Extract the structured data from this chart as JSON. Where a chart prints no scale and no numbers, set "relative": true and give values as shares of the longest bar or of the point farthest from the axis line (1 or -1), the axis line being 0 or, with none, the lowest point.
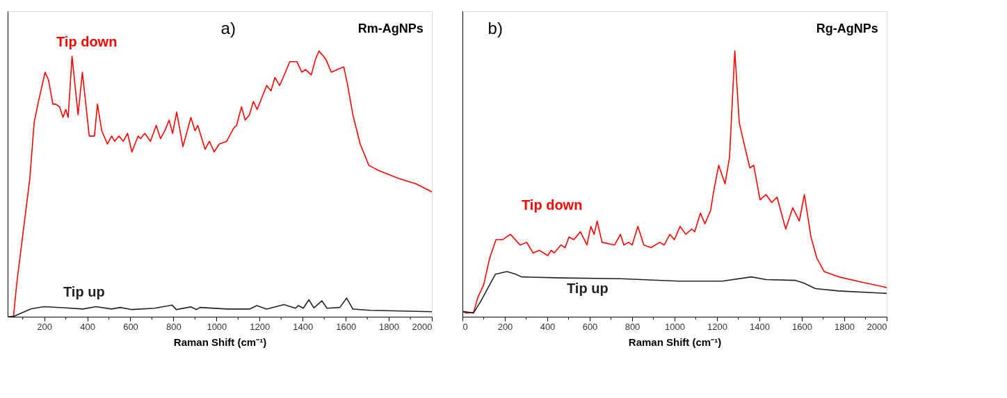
{
  "chart_data": [
    {
      "type": "line",
      "relative": true,
      "xlabel": "Raman Shift (cm⁻¹)",
      "annotations": [
        "a)",
        "Rm-AgNPs"
      ],
      "xlim": [
        30,
        2000
      ],
      "xticks": [
        {
          "value": 100,
          "label": null
        },
        200,
        {
          "value": 300,
          "label": null
        },
        400,
        {
          "value": 500,
          "label": null
        },
        600,
        {
          "value": 700,
          "label": null
        },
        800,
        {
          "value": 900,
          "label": null
        },
        1000,
        {
          "value": 1100,
          "label": null
        },
        1200,
        {
          "value": 1300,
          "label": null
        },
        1400,
        {
          "value": 1500,
          "label": null
        },
        1600,
        {
          "value": 1700,
          "label": null
        },
        1800,
        {
          "value": 1900,
          "label": null
        },
        2000
      ],
      "tick_labels": "x",
      "grid": false,
      "marker": "none",
      "line_style": "solid",
      "series": [
        {
          "name": "Tip down",
          "color": "#ff0000",
          "x": [
            57,
            73,
            133,
            153,
            173,
            204,
            220,
            240,
            253,
            271,
            287,
            300,
            311,
            329,
            357,
            377,
            409,
            433,
            447,
            467,
            493,
            513,
            527,
            547,
            567,
            587,
            607,
            636,
            647,
            667,
            693,
            720,
            740,
            760,
            780,
            796,
            815,
            844,
            881,
            900,
            913,
            947,
            967,
            989,
            1013,
            1047,
            1080,
            1093,
            1116,
            1133,
            1153,
            1171,
            1189,
            1213,
            1233,
            1253,
            1271,
            1293,
            1320,
            1340,
            1373,
            1396,
            1413,
            1440,
            1460,
            1476,
            1507,
            1533,
            1560,
            1591,
            1607,
            1633,
            1667,
            1707,
            1753,
            1847,
            1927,
            2000
          ],
          "values": [
            0.0,
            0.13,
            0.52,
            0.73,
            0.81,
            0.92,
            0.89,
            0.8,
            0.8,
            0.79,
            0.75,
            0.78,
            0.75,
            0.98,
            0.76,
            0.92,
            0.68,
            0.68,
            0.8,
            0.7,
            0.65,
            0.68,
            0.66,
            0.68,
            0.66,
            0.69,
            0.62,
            0.68,
            0.67,
            0.69,
            0.66,
            0.72,
            0.67,
            0.7,
            0.74,
            0.69,
            0.77,
            0.64,
            0.75,
            0.7,
            0.72,
            0.63,
            0.66,
            0.62,
            0.65,
            0.66,
            0.71,
            0.72,
            0.79,
            0.74,
            0.76,
            0.81,
            0.78,
            0.83,
            0.87,
            0.85,
            0.9,
            0.87,
            0.92,
            0.96,
            0.96,
            0.92,
            0.93,
            0.91,
            0.97,
            1.0,
            0.97,
            0.92,
            0.93,
            0.94,
            0.88,
            0.76,
            0.65,
            0.57,
            0.55,
            0.52,
            0.5,
            0.47
          ]
        },
        {
          "name": "Tip up",
          "color": "#222222",
          "x": [
            33,
            60,
            140,
            200,
            287,
            380,
            440,
            513,
            553,
            607,
            713,
            793,
            813,
            880,
            907,
            923,
            1047,
            1153,
            1187,
            1233,
            1313,
            1367,
            1380,
            1403,
            1429,
            1452,
            1489,
            1513,
            1573,
            1604,
            1633,
            1713,
            2000
          ],
          "values": [
            0.0,
            0.002,
            0.03,
            0.038,
            0.034,
            0.029,
            0.038,
            0.029,
            0.035,
            0.027,
            0.032,
            0.044,
            0.027,
            0.037,
            0.027,
            0.035,
            0.029,
            0.029,
            0.042,
            0.029,
            0.046,
            0.032,
            0.042,
            0.032,
            0.064,
            0.033,
            0.06,
            0.032,
            0.035,
            0.07,
            0.029,
            0.024,
            0.019
          ]
        }
      ]
    },
    {
      "type": "line",
      "relative": true,
      "xlabel": "Raman Shift (cm⁻¹)",
      "annotations": [
        "b)",
        "Rg-AgNPs"
      ],
      "xlim": [
        0,
        2000
      ],
      "xticks": [
        0,
        {
          "value": 100,
          "label": null
        },
        200,
        {
          "value": 300,
          "label": null
        },
        400,
        {
          "value": 500,
          "label": null
        },
        600,
        {
          "value": 700,
          "label": null
        },
        800,
        {
          "value": 900,
          "label": null
        },
        1000,
        {
          "value": 1100,
          "label": null
        },
        1200,
        {
          "value": 1300,
          "label": null
        },
        1400,
        {
          "value": 1500,
          "label": null
        },
        1600,
        {
          "value": 1700,
          "label": null
        },
        1800,
        {
          "value": 1900,
          "label": null
        },
        2000
      ],
      "tick_labels": "x",
      "grid": false,
      "marker": "none",
      "line_style": "solid",
      "series": [
        {
          "name": "Tip down",
          "color": "#ff0000",
          "x": [
            0,
            18,
            52,
            73,
            100,
            128,
            158,
            189,
            226,
            272,
            303,
            333,
            363,
            402,
            418,
            432,
            464,
            484,
            502,
            525,
            556,
            587,
            605,
            621,
            635,
            658,
            717,
            745,
            761,
            783,
            800,
            827,
            855,
            889,
            930,
            951,
            978,
            999,
            1026,
            1053,
            1081,
            1095,
            1122,
            1143,
            1170,
            1184,
            1208,
            1238,
            1259,
            1284,
            1305,
            1328,
            1355,
            1373,
            1396,
            1403,
            1431,
            1458,
            1483,
            1524,
            1557,
            1588,
            1612,
            1643,
            1671,
            1705,
            1774,
            1883,
            2000
          ],
          "values": [
            0.02,
            0.014,
            0.016,
            0.074,
            0.12,
            0.22,
            0.29,
            0.29,
            0.31,
            0.27,
            0.28,
            0.24,
            0.25,
            0.23,
            0.25,
            0.24,
            0.27,
            0.26,
            0.3,
            0.29,
            0.32,
            0.27,
            0.34,
            0.31,
            0.36,
            0.28,
            0.27,
            0.31,
            0.27,
            0.28,
            0.27,
            0.34,
            0.27,
            0.26,
            0.28,
            0.27,
            0.31,
            0.29,
            0.34,
            0.31,
            0.33,
            0.32,
            0.39,
            0.35,
            0.4,
            0.47,
            0.57,
            0.5,
            0.6,
            1.0,
            0.73,
            0.65,
            0.56,
            0.57,
            0.47,
            0.44,
            0.46,
            0.43,
            0.45,
            0.33,
            0.41,
            0.36,
            0.46,
            0.3,
            0.22,
            0.17,
            0.15,
            0.13,
            0.11
          ]
        },
        {
          "name": "Tip up",
          "color": "#222222",
          "x": [
            0,
            52,
            86,
            155,
            210,
            251,
            278,
            470,
            745,
            1019,
            1225,
            1362,
            1431,
            1568,
            1609,
            1664,
            1774,
            2000
          ],
          "values": [
            0.02,
            0.014,
            0.058,
            0.16,
            0.17,
            0.16,
            0.15,
            0.146,
            0.143,
            0.134,
            0.134,
            0.15,
            0.14,
            0.137,
            0.127,
            0.106,
            0.097,
            0.088
          ]
        }
      ]
    }
  ]
}
